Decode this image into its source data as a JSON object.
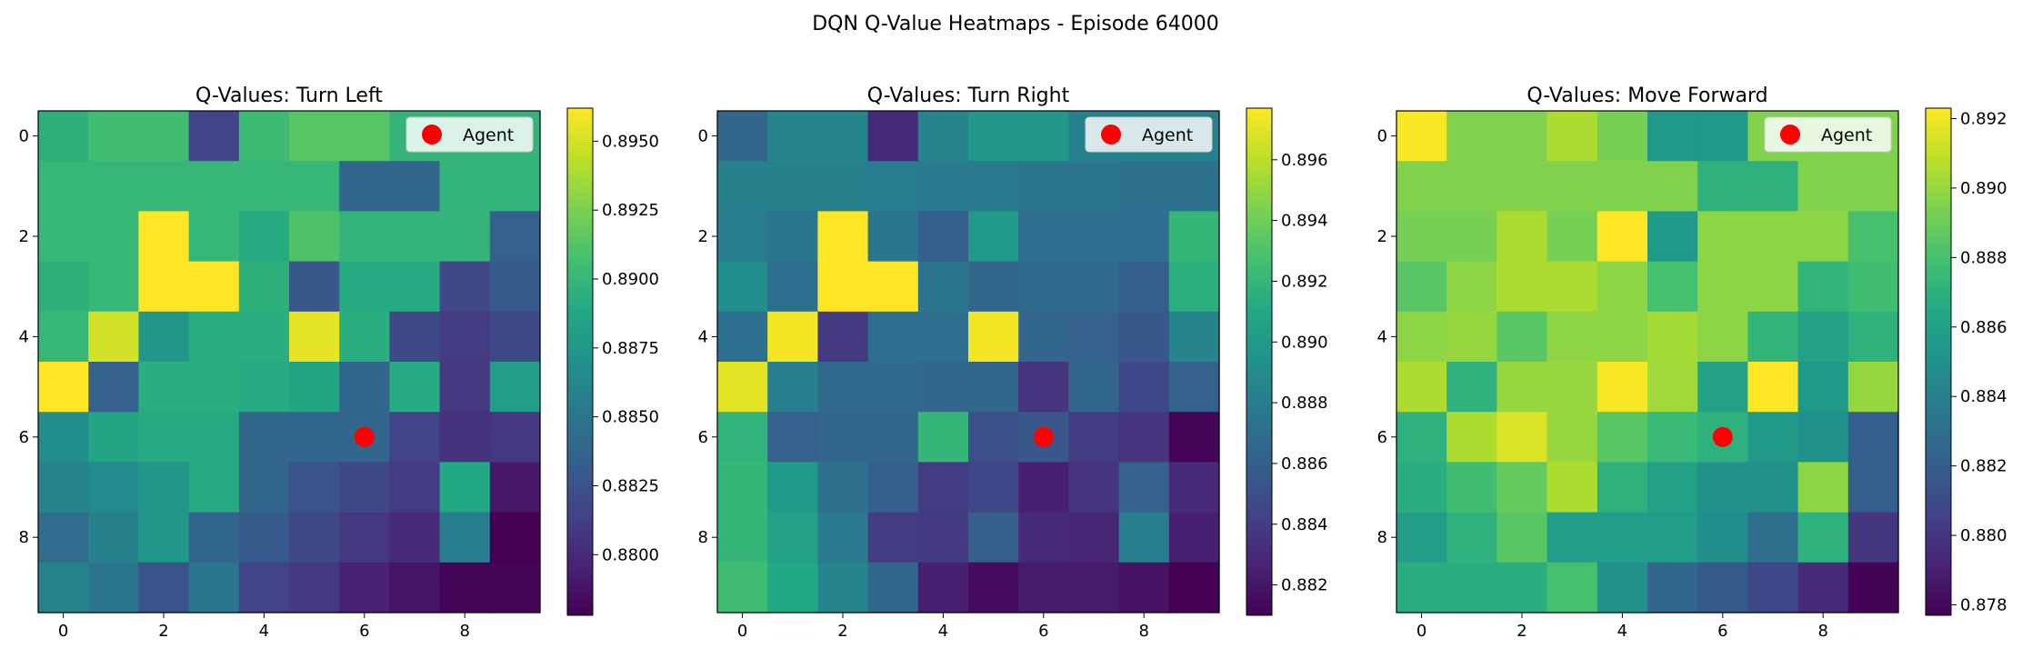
{
  "figure": {
    "suptitle": "DQN Q-Value Heatmaps - Episode 64000"
  },
  "chart_data": [
    {
      "type": "heatmap",
      "title": "Q-Values: Turn Left",
      "xlabel": "",
      "ylabel": "",
      "xticks": [
        "0",
        "2",
        "4",
        "6",
        "8"
      ],
      "yticks": [
        "0",
        "2",
        "4",
        "6",
        "8"
      ],
      "legend": {
        "label": "Agent",
        "marker_x": 6,
        "marker_y": 6,
        "color": "#ff0000",
        "placement": "top-right"
      },
      "colorbar": {
        "min": 0.8778,
        "max": 0.8962,
        "ticks": [
          "0.8800",
          "0.8825",
          "0.8850",
          "0.8875",
          "0.8900",
          "0.8925",
          "0.8950"
        ]
      },
      "values": [
        [
          0.8895,
          0.8905,
          0.8905,
          0.8815,
          0.8903,
          0.8913,
          0.8913,
          0.8898,
          0.8898,
          0.8898
        ],
        [
          0.89,
          0.89,
          0.89,
          0.89,
          0.89,
          0.89,
          0.8838,
          0.8838,
          0.8898,
          0.8898
        ],
        [
          0.89,
          0.89,
          0.8962,
          0.89,
          0.889,
          0.891,
          0.8898,
          0.8898,
          0.8898,
          0.8835
        ],
        [
          0.8895,
          0.89,
          0.8962,
          0.8962,
          0.8895,
          0.8828,
          0.889,
          0.889,
          0.8818,
          0.883
        ],
        [
          0.89,
          0.895,
          0.8875,
          0.8893,
          0.8893,
          0.8955,
          0.8893,
          0.8818,
          0.881,
          0.8818
        ],
        [
          0.8962,
          0.8835,
          0.8893,
          0.8893,
          0.889,
          0.8885,
          0.8838,
          0.889,
          0.8808,
          0.888
        ],
        [
          0.8868,
          0.8885,
          0.889,
          0.889,
          0.8838,
          0.8838,
          0.8838,
          0.8815,
          0.8805,
          0.8808
        ],
        [
          0.886,
          0.8865,
          0.8875,
          0.889,
          0.8838,
          0.8825,
          0.8818,
          0.881,
          0.8888,
          0.879
        ],
        [
          0.8843,
          0.8858,
          0.8875,
          0.8838,
          0.883,
          0.8818,
          0.8808,
          0.88,
          0.8855,
          0.8778
        ],
        [
          0.886,
          0.885,
          0.8825,
          0.885,
          0.8815,
          0.8808,
          0.8795,
          0.8788,
          0.878,
          0.878
        ]
      ]
    },
    {
      "type": "heatmap",
      "title": "Q-Values: Turn Right",
      "xlabel": "",
      "ylabel": "",
      "xticks": [
        "0",
        "2",
        "4",
        "6",
        "8"
      ],
      "yticks": [
        "0",
        "2",
        "4",
        "6",
        "8"
      ],
      "legend": {
        "label": "Agent",
        "marker_x": 6,
        "marker_y": 6,
        "color": "#ff0000",
        "placement": "top-right"
      },
      "colorbar": {
        "min": 0.881,
        "max": 0.8977,
        "ticks": [
          "0.882",
          "0.884",
          "0.886",
          "0.888",
          "0.890",
          "0.892",
          "0.894",
          "0.896"
        ]
      },
      "values": [
        [
          0.8865,
          0.8885,
          0.8885,
          0.883,
          0.8885,
          0.8898,
          0.8898,
          0.8882,
          0.8882,
          0.8882
        ],
        [
          0.8883,
          0.8883,
          0.8883,
          0.888,
          0.8878,
          0.8878,
          0.8875,
          0.8875,
          0.8872,
          0.8872
        ],
        [
          0.888,
          0.8875,
          0.8977,
          0.8875,
          0.886,
          0.89,
          0.887,
          0.887,
          0.887,
          0.892
        ],
        [
          0.8892,
          0.887,
          0.8977,
          0.8977,
          0.8875,
          0.8865,
          0.8868,
          0.8868,
          0.886,
          0.8915
        ],
        [
          0.887,
          0.8975,
          0.8838,
          0.887,
          0.887,
          0.8975,
          0.8865,
          0.8862,
          0.8855,
          0.8885
        ],
        [
          0.897,
          0.8882,
          0.8868,
          0.8868,
          0.8865,
          0.8865,
          0.8835,
          0.8865,
          0.8845,
          0.8862
        ],
        [
          0.8918,
          0.8862,
          0.8865,
          0.8865,
          0.892,
          0.885,
          0.8855,
          0.884,
          0.8835,
          0.8812
        ],
        [
          0.892,
          0.89,
          0.8872,
          0.886,
          0.884,
          0.8845,
          0.8825,
          0.8835,
          0.8862,
          0.883
        ],
        [
          0.892,
          0.8905,
          0.8878,
          0.884,
          0.8838,
          0.886,
          0.883,
          0.8828,
          0.888,
          0.8825
        ],
        [
          0.8925,
          0.891,
          0.8885,
          0.8865,
          0.8825,
          0.8815,
          0.8822,
          0.8822,
          0.8818,
          0.881
        ]
      ]
    },
    {
      "type": "heatmap",
      "title": "Q-Values: Move Forward",
      "xlabel": "",
      "ylabel": "",
      "xticks": [
        "0",
        "2",
        "4",
        "6",
        "8"
      ],
      "yticks": [
        "0",
        "2",
        "4",
        "6",
        "8"
      ],
      "legend": {
        "label": "Agent",
        "marker_x": 6,
        "marker_y": 6,
        "color": "#ff0000",
        "placement": "top-right"
      },
      "colorbar": {
        "min": 0.8777,
        "max": 0.8923,
        "ticks": [
          "0.878",
          "0.880",
          "0.882",
          "0.884",
          "0.886",
          "0.888",
          "0.890",
          "0.892"
        ]
      },
      "values": [
        [
          0.8922,
          0.8895,
          0.8895,
          0.8905,
          0.8893,
          0.8855,
          0.8855,
          0.8895,
          0.8895,
          0.8895
        ],
        [
          0.8895,
          0.8895,
          0.8895,
          0.8895,
          0.8895,
          0.8895,
          0.887,
          0.887,
          0.8895,
          0.8895
        ],
        [
          0.8893,
          0.8893,
          0.8905,
          0.8893,
          0.8923,
          0.8855,
          0.8898,
          0.8898,
          0.8898,
          0.888
        ],
        [
          0.8885,
          0.8898,
          0.8905,
          0.8905,
          0.8898,
          0.888,
          0.8898,
          0.8898,
          0.8872,
          0.8878
        ],
        [
          0.8898,
          0.89,
          0.8885,
          0.8898,
          0.8898,
          0.8903,
          0.8898,
          0.8872,
          0.886,
          0.887
        ],
        [
          0.8905,
          0.887,
          0.89,
          0.89,
          0.8922,
          0.8902,
          0.886,
          0.8923,
          0.8855,
          0.89
        ],
        [
          0.887,
          0.8905,
          0.8915,
          0.89,
          0.8885,
          0.8875,
          0.887,
          0.8855,
          0.885,
          0.882
        ],
        [
          0.8868,
          0.8878,
          0.8888,
          0.8905,
          0.887,
          0.886,
          0.885,
          0.885,
          0.8898,
          0.882
        ],
        [
          0.8858,
          0.887,
          0.8885,
          0.8858,
          0.8858,
          0.8858,
          0.8848,
          0.883,
          0.887,
          0.88
        ],
        [
          0.8868,
          0.8868,
          0.8868,
          0.888,
          0.885,
          0.8825,
          0.8818,
          0.8808,
          0.8795,
          0.8778
        ]
      ]
    }
  ]
}
